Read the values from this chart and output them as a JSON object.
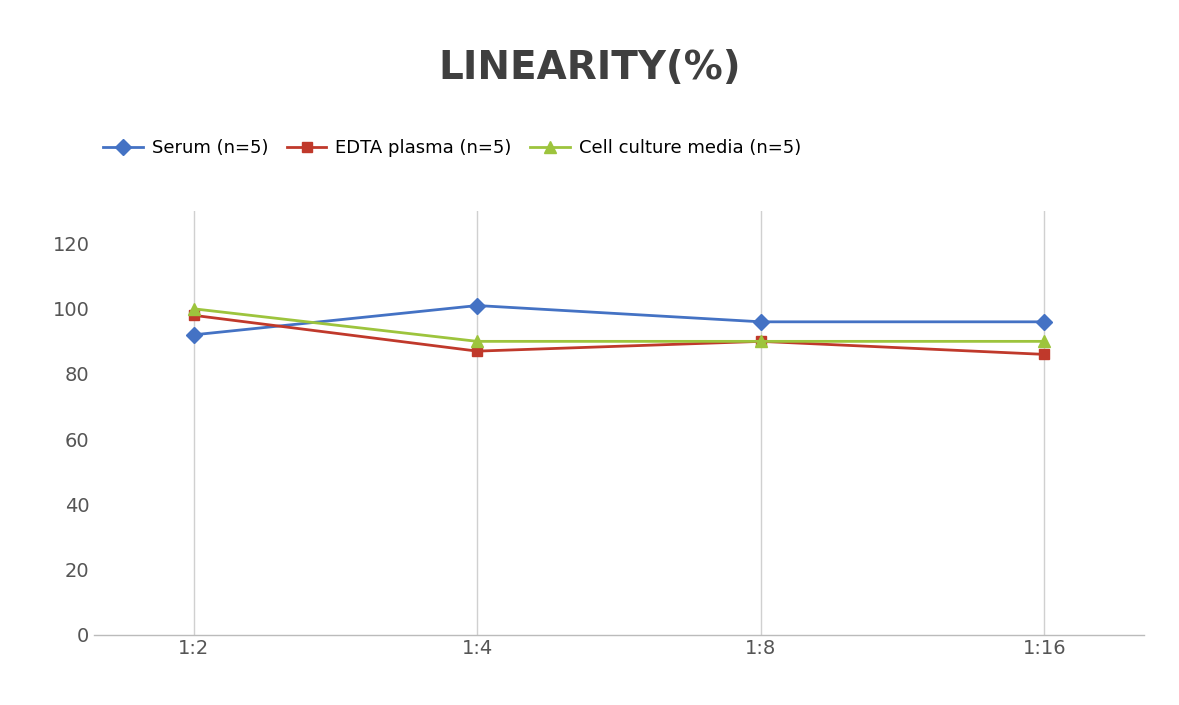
{
  "title": "LINEARITY(%)",
  "title_fontsize": 28,
  "title_fontweight": "bold",
  "x_labels": [
    "1:2",
    "1:4",
    "1:8",
    "1:16"
  ],
  "x_positions": [
    0,
    1,
    2,
    3
  ],
  "series": [
    {
      "label": "Serum (n=5)",
      "values": [
        92,
        101,
        96,
        96
      ],
      "color": "#4472C4",
      "marker": "D",
      "markersize": 8,
      "linewidth": 2.0
    },
    {
      "label": "EDTA plasma (n=5)",
      "values": [
        98,
        87,
        90,
        86
      ],
      "color": "#C0392B",
      "marker": "s",
      "markersize": 7,
      "linewidth": 2.0
    },
    {
      "label": "Cell culture media (n=5)",
      "values": [
        100,
        90,
        90,
        90
      ],
      "color": "#9DC43D",
      "marker": "^",
      "markersize": 8,
      "linewidth": 2.0
    }
  ],
  "ylim": [
    0,
    130
  ],
  "yticks": [
    0,
    20,
    40,
    60,
    80,
    100,
    120
  ],
  "background_color": "#ffffff",
  "grid_color": "#d0d0d0",
  "legend_fontsize": 13,
  "axis_tick_fontsize": 14,
  "title_color": "#3f3f3f"
}
